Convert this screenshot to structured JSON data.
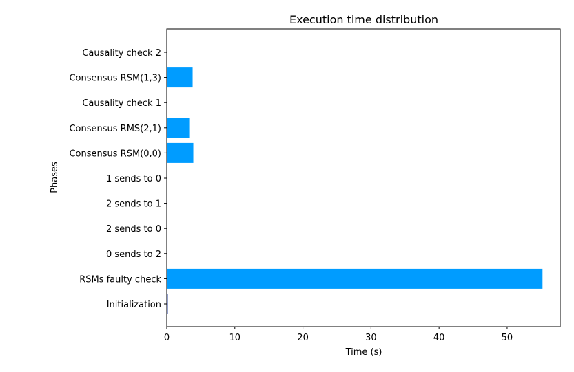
{
  "chart_data": {
    "type": "bar",
    "orientation": "horizontal",
    "title": "Execution time distribution",
    "xlabel": "Time (s)",
    "ylabel": "Phases",
    "xlim": [
      0,
      57.8
    ],
    "xticks": [
      0,
      10,
      20,
      30,
      40,
      50
    ],
    "grid": false,
    "bar_color": "#009cff",
    "categories": [
      "Initialization",
      "RSMs faulty check",
      "0 sends to 2",
      "2 sends to 0",
      "2 sends to 1",
      "1 sends to 0",
      "Consensus RSM(0,0)",
      "Consensus RMS(2,1)",
      "Causality check 1",
      "Consensus RSM(1,3)",
      "Causality check 2"
    ],
    "values": [
      0.1,
      55.2,
      0,
      0,
      0,
      0,
      3.9,
      3.4,
      0,
      3.8,
      0
    ]
  }
}
